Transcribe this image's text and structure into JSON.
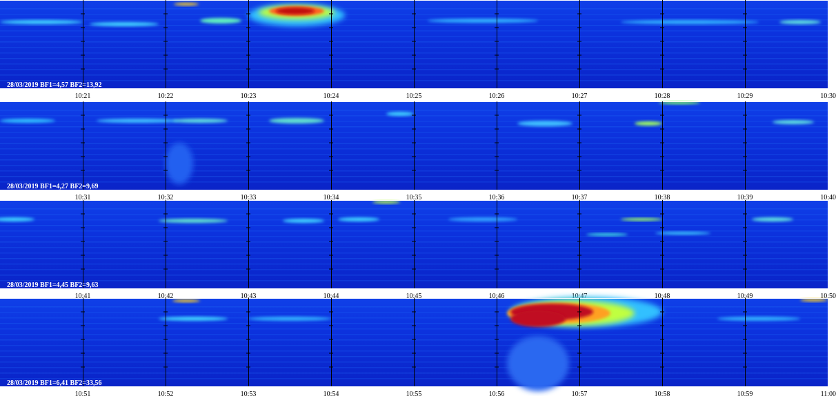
{
  "panels": [
    {
      "caption": "28/03/2019 BF1=4,57 BF2=13,92",
      "ticks": [
        "10:21",
        "10:22",
        "10:23",
        "10:24",
        "10:25",
        "10:26",
        "10:27",
        "10:28",
        "10:29",
        "10:30"
      ]
    },
    {
      "caption": "28/03/2019 BF1=4,27 BF2=9,69",
      "ticks": [
        "10:31",
        "10:32",
        "10:33",
        "10:34",
        "10:35",
        "10:36",
        "10:37",
        "10:38",
        "10:39",
        "10:40"
      ]
    },
    {
      "caption": "28/03/2019 BF1=4,45 BF2=9,63",
      "ticks": [
        "10:41",
        "10:42",
        "10:43",
        "10:44",
        "10:45",
        "10:46",
        "10:47",
        "10:48",
        "10:49",
        "10:50"
      ]
    },
    {
      "caption": "28/03/2019 BF1=6,41 BF2=33,56",
      "ticks": [
        "10:51",
        "10:52",
        "10:53",
        "10:54",
        "10:55",
        "10:56",
        "10:57",
        "10:58",
        "10:59",
        "11:00"
      ]
    }
  ]
}
